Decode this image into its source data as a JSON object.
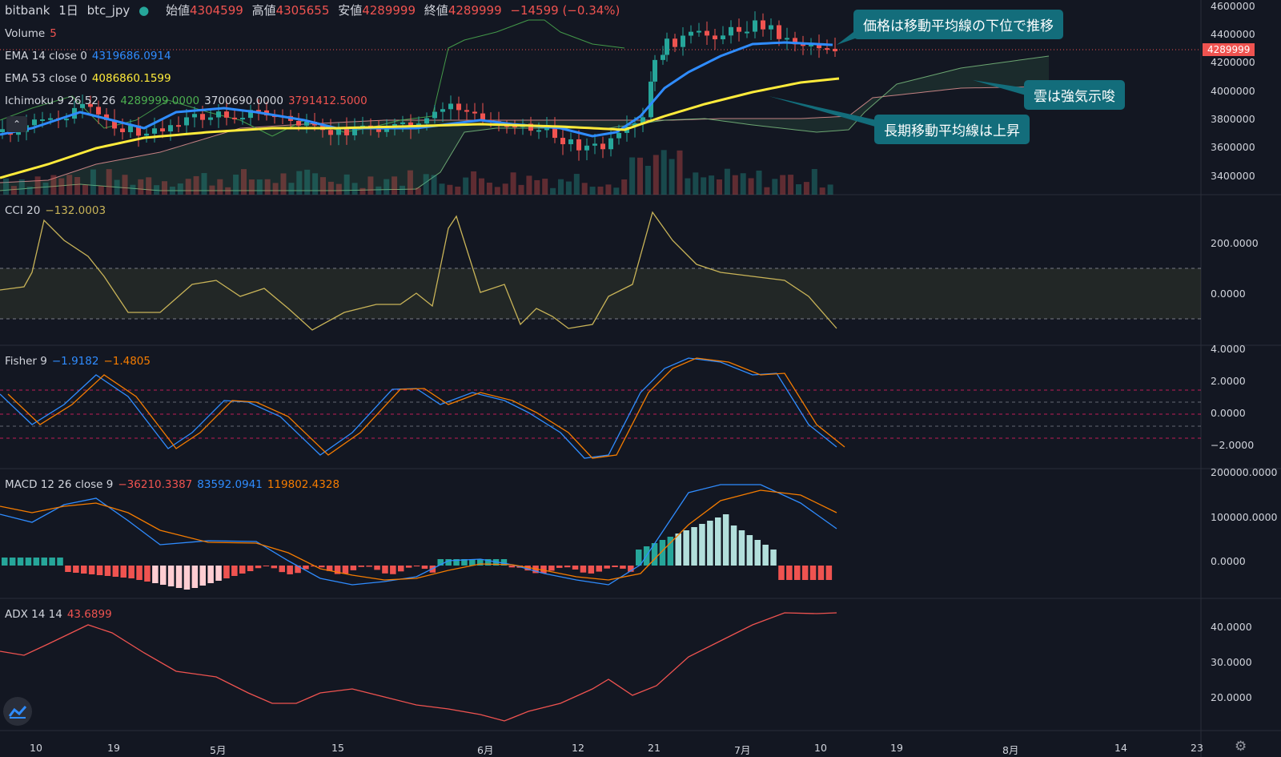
{
  "header": {
    "symbol_exchange": "bitbank",
    "interval": "1日",
    "symbol": "btc_jpy",
    "open_label": "始値",
    "open_value": "4304599",
    "high_label": "高値",
    "high_value": "4305655",
    "low_label": "安値",
    "low_value": "4289999",
    "close_label": "終値",
    "close_value": "4289999",
    "change": "−14599 (−0.34%)"
  },
  "indicators": {
    "volume": {
      "name": "Volume",
      "value": "5"
    },
    "ema14": {
      "name": "EMA 14 close 0",
      "value": "4319686.0914"
    },
    "ema53": {
      "name": "EMA 53 close 0",
      "value": "4086860.1599"
    },
    "ichimoku": {
      "name": "Ichimoku 9 26 52 26",
      "v1": "4289999.0000",
      "v2": "3700690.0000",
      "v3": "3791412.5000"
    },
    "cci": {
      "name": "CCI 20",
      "value": "−132.0003"
    },
    "fisher": {
      "name": "Fisher 9",
      "v1": "−1.9182",
      "v2": "−1.4805"
    },
    "macd": {
      "name": "MACD 12 26 close 9",
      "v1": "−36210.3387",
      "v2": "83592.0941",
      "v3": "119802.4328"
    },
    "adx": {
      "name": "ADX 14 14",
      "value": "43.6899"
    }
  },
  "callouts": {
    "c1": "価格は移動平均線の下位で推移",
    "c2": "雲は強気示唆",
    "c3": "長期移動平均線は上昇"
  },
  "price_tag": "4289999",
  "y_axes": {
    "main": [
      "4600000",
      "4400000",
      "4200000",
      "4000000",
      "3800000",
      "3600000",
      "3400000"
    ],
    "cci": [
      "200.0000",
      "0.0000"
    ],
    "fisher": [
      "4.0000",
      "2.0000",
      "0.0000",
      "−2.0000"
    ],
    "macd": [
      "200000.0000",
      "100000.0000",
      "0.0000"
    ],
    "adx": [
      "40.0000",
      "30.0000",
      "20.0000"
    ]
  },
  "x_axis": [
    "10",
    "19",
    "5月",
    "15",
    "6月",
    "12",
    "21",
    "7月",
    "10",
    "19",
    "8月",
    "14",
    "23"
  ],
  "colors": {
    "background": "#131722",
    "ema14": "#2f8cff",
    "ema53": "#ffeb3b",
    "up": "#26a69a",
    "down": "#ef5350",
    "callout": "#136d7b",
    "cci": "#c9b458",
    "fisher_fast": "#2f8cff",
    "fisher_slow": "#f57c00",
    "adx": "#ef5350"
  },
  "chart_data": {
    "type": "line",
    "title": "",
    "x": [
      "10",
      "19",
      "5月",
      "15",
      "6月",
      "12",
      "21",
      "7月",
      "10"
    ],
    "series": [
      {
        "name": "EMA 14 close 0",
        "values": [
          3720000,
          3840000,
          3790000,
          3780000,
          3790000,
          3720000,
          3880000,
          4330000,
          4320000
        ]
      },
      {
        "name": "EMA 53 close 0",
        "values": [
          3450000,
          3640000,
          3760000,
          3790000,
          3780000,
          3760000,
          3780000,
          3980000,
          4090000
        ]
      },
      {
        "name": "CCI 20",
        "values": [
          0,
          250,
          30,
          -100,
          250,
          -90,
          250,
          40,
          -130
        ]
      },
      {
        "name": "Fisher 9",
        "values": [
          0,
          2.2,
          0.5,
          -2.2,
          1.5,
          -2.3,
          3.4,
          3.0,
          -1.9
        ]
      },
      {
        "name": "MACD 12 26 close 9",
        "values": [
          120000,
          140000,
          60000,
          -30000,
          10000,
          -40000,
          140000,
          180000,
          83000
        ]
      },
      {
        "name": "ADX 14 14",
        "values": [
          32,
          41,
          27,
          23,
          22,
          13,
          21,
          40,
          43.7
        ]
      }
    ]
  }
}
